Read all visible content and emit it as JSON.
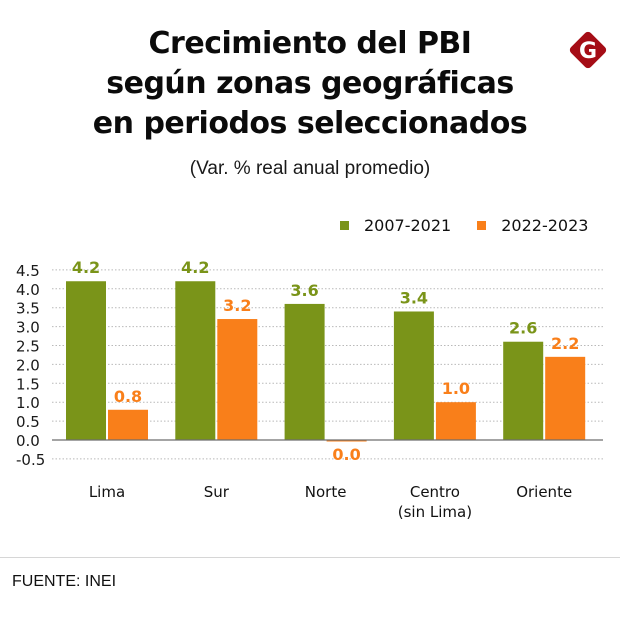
{
  "header": {
    "title_lines": [
      "Crecimiento del PBI",
      "según zonas geográficas",
      "en periodos seleccionados"
    ],
    "subtitle": "(Var. % real anual promedio)",
    "logo_letter": "G",
    "logo_color": "#a50d16"
  },
  "chart_data": {
    "type": "bar",
    "title": "Crecimiento del PBI según zonas geográficas en periodos seleccionados",
    "subtitle": "(Var. % real anual promedio)",
    "categories": [
      [
        "Lima"
      ],
      [
        "Sur"
      ],
      [
        "Norte"
      ],
      [
        "Centro",
        "(sin Lima)"
      ],
      [
        "Oriente"
      ]
    ],
    "series": [
      {
        "name": "2007-2021",
        "color": "#7a9419",
        "values": [
          4.2,
          4.2,
          3.6,
          3.4,
          2.6
        ],
        "labels": [
          "4.2",
          "4.2",
          "3.6",
          "3.4",
          "2.6"
        ]
      },
      {
        "name": "2022-2023",
        "color": "#f97f1a",
        "values": [
          0.8,
          3.2,
          0.0,
          1.0,
          2.2
        ],
        "labels": [
          "0.8",
          "3.2",
          "0.0",
          "1.0",
          "2.2"
        ]
      }
    ],
    "xlabel": "",
    "ylabel": "",
    "ylim": [
      -0.5,
      4.5
    ],
    "yticks": [
      4.5,
      4.0,
      3.5,
      3.0,
      2.5,
      2.0,
      1.5,
      1.0,
      0.5,
      0.0,
      -0.5
    ],
    "ytick_labels": [
      "4.5",
      "4.0",
      "3.5",
      "3.0",
      "2.5",
      "2.0",
      "1.5",
      "1.0",
      "0.5",
      "0.0",
      "-0.5"
    ],
    "grid": "horizontal dotted",
    "legend_position": "top-right"
  },
  "footer": {
    "source": "FUENTE: INEI"
  }
}
